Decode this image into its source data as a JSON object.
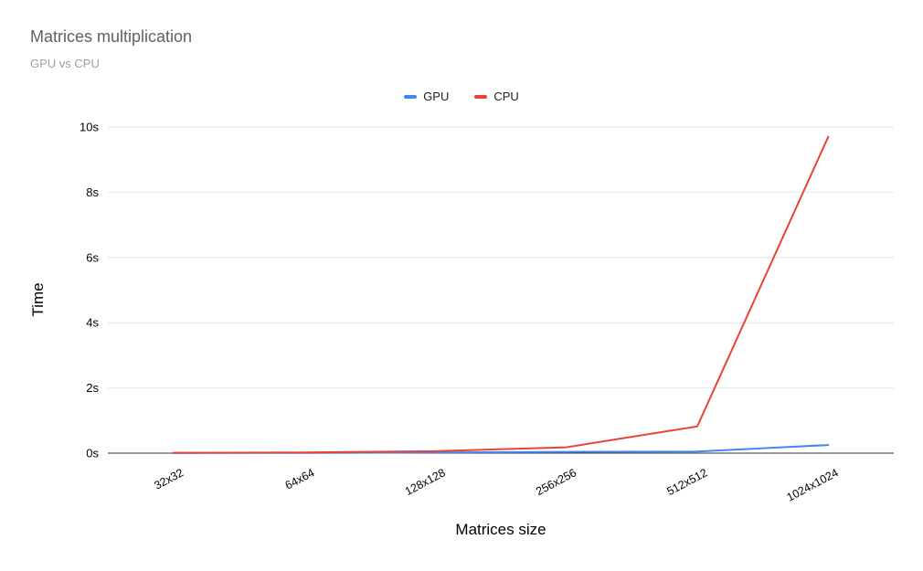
{
  "chart": {
    "title": "Matrices multiplication",
    "subtitle": "GPU vs CPU",
    "x_axis_label": "Matrices size",
    "y_axis_label": "Time"
  },
  "chart_data": {
    "type": "line",
    "title": "Matrices multiplication",
    "subtitle": "GPU vs CPU",
    "xlabel": "Matrices size",
    "ylabel": "Time",
    "categories": [
      "32x32",
      "64x64",
      "128x128",
      "256x256",
      "512x512",
      "1024x1024"
    ],
    "series": [
      {
        "name": "GPU",
        "color": "#4285f4",
        "values": [
          0.005,
          0.008,
          0.02,
          0.04,
          0.05,
          0.25
        ]
      },
      {
        "name": "CPU",
        "color": "#ea4335",
        "values": [
          0.01,
          0.02,
          0.06,
          0.18,
          0.82,
          9.7
        ]
      }
    ],
    "ylim": [
      0,
      10
    ],
    "yticks": [
      0,
      2,
      4,
      6,
      8,
      10
    ],
    "ytick_labels": [
      "0s",
      "2s",
      "4s",
      "6s",
      "8s",
      "10s"
    ],
    "grid": true,
    "legend_position": "top",
    "colors": {
      "gridline": "#e6e6e6",
      "baseline": "#333333",
      "tick_text": "#000000"
    }
  }
}
